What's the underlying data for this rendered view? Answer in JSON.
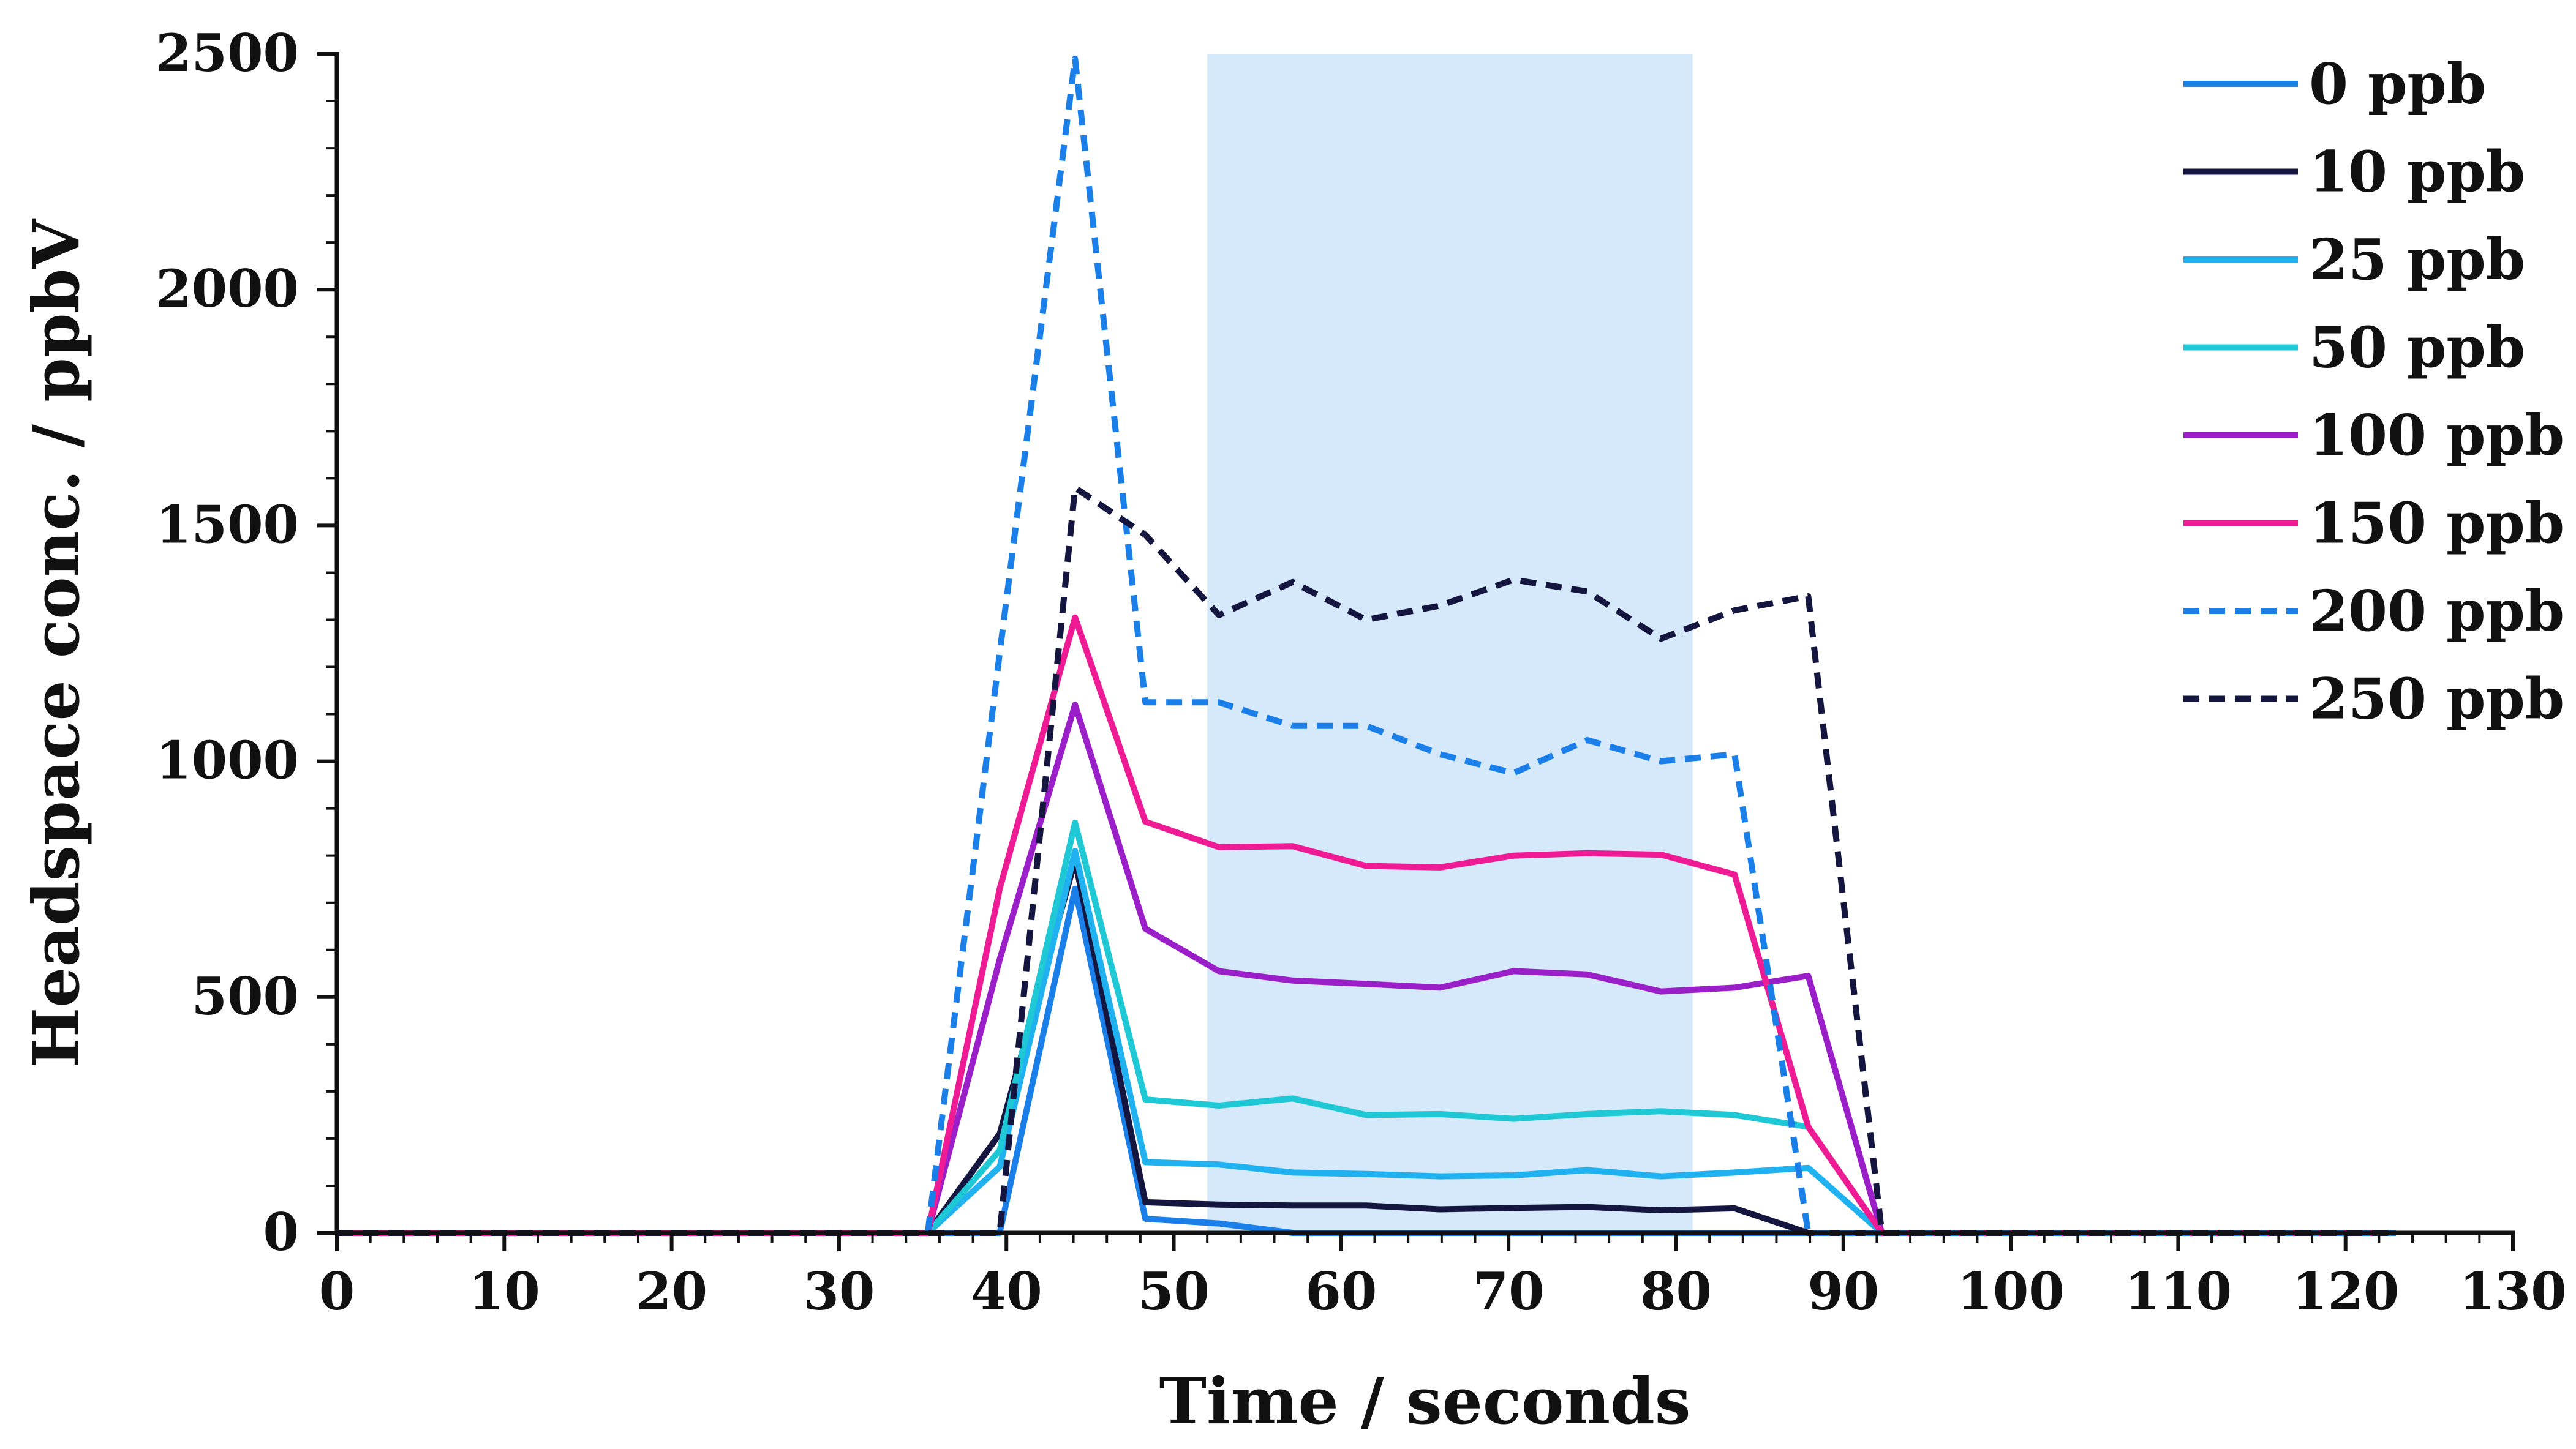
{
  "chart_data": {
    "type": "line",
    "xlabel": "Time / seconds",
    "ylabel": "Headspace conc. / ppbV",
    "xlim": [
      0,
      130
    ],
    "ylim": [
      0,
      2500
    ],
    "xticks": [
      0,
      10,
      20,
      30,
      40,
      50,
      60,
      70,
      80,
      90,
      100,
      110,
      120,
      130
    ],
    "yticks": [
      0,
      500,
      1000,
      1500,
      2000,
      2500
    ],
    "shaded_region": {
      "x_start": 52,
      "x_end": 81,
      "color": "#d6e9fb"
    },
    "legend_position": "top-right",
    "grid": false,
    "series": [
      {
        "name": "0 ppb",
        "color": "#1a7fe8",
        "dashed": false,
        "x": [
          0,
          30,
          35.3,
          39.6,
          44.1,
          48.3,
          52.7,
          57.1,
          61.5,
          65.9,
          70.3,
          74.7,
          79.1,
          83.5,
          87.9,
          92.3,
          96.7,
          123
        ],
        "y": [
          0,
          0,
          0,
          0,
          730,
          30,
          20,
          0,
          0,
          0,
          0,
          0,
          0,
          0,
          0,
          0,
          0,
          0
        ]
      },
      {
        "name": "10 ppb",
        "color": "#14163f",
        "dashed": false,
        "x": [
          0,
          30,
          35.3,
          39.6,
          44.1,
          48.3,
          52.7,
          57.1,
          61.5,
          65.9,
          70.3,
          74.7,
          79.1,
          83.5,
          87.9,
          92.3,
          96.7,
          123
        ],
        "y": [
          0,
          0,
          0,
          210,
          790,
          65,
          60,
          58,
          58,
          50,
          53,
          55,
          48,
          52,
          0,
          0,
          0,
          0
        ]
      },
      {
        "name": "25 ppb",
        "color": "#20b2f0",
        "dashed": false,
        "x": [
          0,
          30,
          35.3,
          39.6,
          44.1,
          48.3,
          52.7,
          57.1,
          61.5,
          65.9,
          70.3,
          74.7,
          79.1,
          83.5,
          87.9,
          92.3,
          96.7,
          123
        ],
        "y": [
          0,
          0,
          0,
          140,
          810,
          150,
          145,
          128,
          125,
          120,
          122,
          133,
          120,
          128,
          138,
          0,
          0,
          0
        ]
      },
      {
        "name": "50 ppb",
        "color": "#1ec8d4",
        "dashed": false,
        "x": [
          0,
          30,
          35.3,
          39.6,
          44.1,
          48.3,
          52.7,
          57.1,
          61.5,
          65.9,
          70.3,
          74.7,
          79.1,
          83.5,
          87.9,
          92.3,
          96.7,
          123
        ],
        "y": [
          0,
          0,
          0,
          175,
          870,
          283,
          270,
          285,
          250,
          252,
          242,
          252,
          258,
          250,
          225,
          0,
          0,
          0
        ]
      },
      {
        "name": "100 ppb",
        "color": "#9b1fc9",
        "dashed": false,
        "x": [
          0,
          30,
          35.3,
          39.6,
          44.1,
          48.3,
          52.7,
          57.1,
          61.5,
          65.9,
          70.3,
          74.7,
          79.1,
          83.5,
          87.9,
          92.3,
          96.7,
          123
        ],
        "y": [
          0,
          0,
          0,
          580,
          1120,
          645,
          555,
          535,
          528,
          520,
          555,
          548,
          512,
          520,
          545,
          0,
          0,
          0
        ]
      },
      {
        "name": "150 ppb",
        "color": "#ee1b94",
        "dashed": false,
        "x": [
          0,
          30,
          35.3,
          39.6,
          44.1,
          48.3,
          52.7,
          57.1,
          61.5,
          65.9,
          70.3,
          74.7,
          79.1,
          83.5,
          87.9,
          92.3,
          96.7,
          123
        ],
        "y": [
          0,
          0,
          0,
          730,
          1305,
          872,
          818,
          820,
          778,
          775,
          800,
          805,
          802,
          760,
          225,
          0,
          0,
          0
        ]
      },
      {
        "name": "200 ppb",
        "color": "#1a7fe8",
        "dashed": true,
        "x": [
          0,
          30,
          35.3,
          39.6,
          44.1,
          48.3,
          52.7,
          57.1,
          61.5,
          65.9,
          70.3,
          74.7,
          79.1,
          83.5,
          87.9,
          92.3,
          96.7,
          123
        ],
        "y": [
          0,
          0,
          0,
          1230,
          2490,
          1125,
          1125,
          1075,
          1075,
          1015,
          975,
          1045,
          1000,
          1015,
          0,
          0,
          0,
          0
        ]
      },
      {
        "name": "250 ppb",
        "color": "#14163f",
        "dashed": true,
        "x": [
          0,
          30,
          35.3,
          39.6,
          44.1,
          48.3,
          52.7,
          57.1,
          61.5,
          65.9,
          70.3,
          74.7,
          79.1,
          83.5,
          87.9,
          92.3,
          96.7,
          123
        ],
        "y": [
          0,
          0,
          0,
          0,
          1580,
          1480,
          1310,
          1380,
          1300,
          1330,
          1385,
          1360,
          1260,
          1320,
          1350,
          0,
          0,
          0
        ]
      }
    ]
  }
}
